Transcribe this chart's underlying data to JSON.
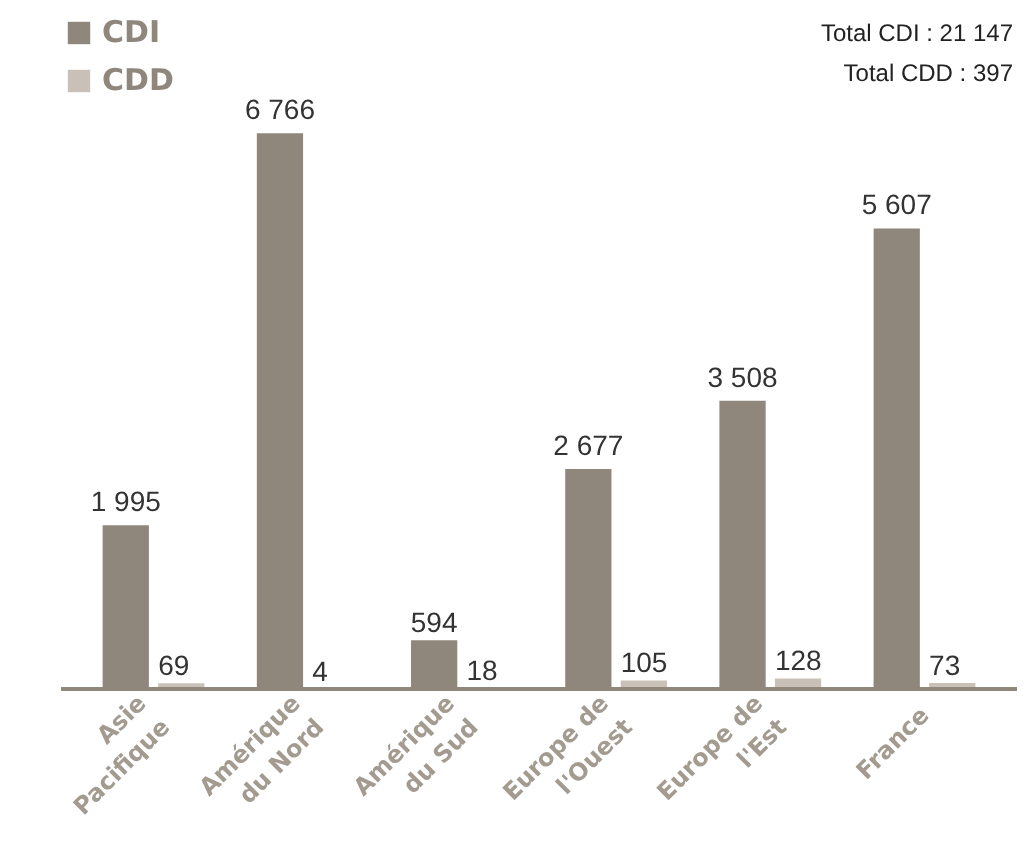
{
  "chart_data": {
    "type": "bar",
    "categories": [
      "Asie\nPacifique",
      "Amérique\ndu Nord",
      "Amérique\ndu Sud",
      "Europe de\nl'Ouest",
      "Europe de\nl'Est",
      "France"
    ],
    "series": [
      {
        "name": "CDI",
        "color": "#8f877b",
        "values": [
          1995,
          6766,
          594,
          2677,
          3508,
          5607
        ],
        "value_labels": [
          "1 995",
          "6 766",
          "594",
          "2 677",
          "3 508",
          "5 607"
        ]
      },
      {
        "name": "CDD",
        "color": "#c9c1b8",
        "values": [
          69,
          4,
          18,
          105,
          128,
          73
        ],
        "value_labels": [
          "69",
          "4",
          "18",
          "105",
          "128",
          "73"
        ]
      }
    ],
    "annotations": [
      "Total CDI : 21 147",
      "Total CDD : 397"
    ],
    "legend": "top left",
    "grid": false
  }
}
